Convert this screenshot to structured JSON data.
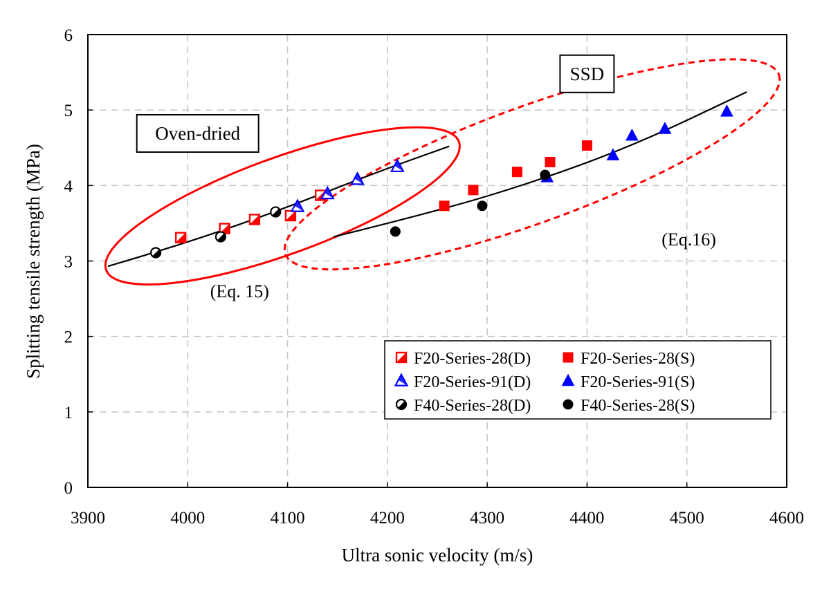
{
  "chart_data": {
    "type": "scatter",
    "xlabel": "Ultra sonic velocity (m/s)",
    "ylabel": "Splitting tensile strength (MPa)",
    "xlim": [
      3900,
      4600
    ],
    "ylim": [
      0,
      6
    ],
    "x_ticks": [
      3900,
      4000,
      4100,
      4200,
      4300,
      4400,
      4500,
      4600
    ],
    "y_ticks": [
      0,
      1,
      2,
      3,
      4,
      5,
      6
    ],
    "grid": true,
    "legend_position": "lower-right",
    "colors": {
      "red": "#ff0000",
      "blue": "#0000ff",
      "black": "#000000"
    },
    "series": [
      {
        "name": "F20-Series-28(D)",
        "marker": "square",
        "color": "#ff0000",
        "fill": "half",
        "points": [
          [
            3993,
            3.31
          ],
          [
            4037,
            3.43
          ],
          [
            4067,
            3.55
          ],
          [
            4103,
            3.6
          ],
          [
            4133,
            3.87
          ]
        ]
      },
      {
        "name": "F20-Series-28(S)",
        "marker": "square",
        "color": "#ff0000",
        "fill": "filled",
        "points": [
          [
            4257,
            3.73
          ],
          [
            4286,
            3.94
          ],
          [
            4330,
            4.18
          ],
          [
            4363,
            4.31
          ],
          [
            4400,
            4.53
          ]
        ]
      },
      {
        "name": "F20-Series-91(D)",
        "marker": "triangle",
        "color": "#0000ff",
        "fill": "half",
        "points": [
          [
            4110,
            3.72
          ],
          [
            4140,
            3.89
          ],
          [
            4170,
            4.08
          ],
          [
            4210,
            4.25
          ]
        ]
      },
      {
        "name": "F20-Series-91(S)",
        "marker": "triangle",
        "color": "#0000ff",
        "fill": "filled",
        "points": [
          [
            4360,
            4.11
          ],
          [
            4426,
            4.4
          ],
          [
            4445,
            4.66
          ],
          [
            4478,
            4.75
          ],
          [
            4540,
            4.98
          ]
        ]
      },
      {
        "name": "F40-Series-28(D)",
        "marker": "circle",
        "color": "#000000",
        "fill": "half",
        "points": [
          [
            3968,
            3.11
          ],
          [
            4033,
            3.32
          ],
          [
            4088,
            3.65
          ]
        ]
      },
      {
        "name": "F40-Series-28(S)",
        "marker": "circle",
        "color": "#000000",
        "fill": "filled",
        "points": [
          [
            4208,
            3.39
          ],
          [
            4295,
            3.73
          ],
          [
            4358,
            4.14
          ]
        ]
      }
    ],
    "fit_lines": [
      {
        "name": "Oven-dried fit",
        "points": [
          [
            3920,
            2.93
          ],
          [
            3990,
            3.2
          ],
          [
            4090,
            3.66
          ],
          [
            4190,
            4.18
          ],
          [
            4262,
            4.52
          ]
        ]
      },
      {
        "name": "SSD fit",
        "points": [
          [
            4146,
            3.32
          ],
          [
            4250,
            3.66
          ],
          [
            4350,
            4.06
          ],
          [
            4450,
            4.55
          ],
          [
            4560,
            5.24
          ]
        ]
      }
    ],
    "boxes": [
      {
        "label": "Oven-dried",
        "x_center": 4010,
        "y_center": 4.69
      },
      {
        "label": "SSD",
        "x_center": 4400,
        "y_center": 5.48
      }
    ],
    "annotations": [
      {
        "text": "(Eq. 15)",
        "x": 4052,
        "y": 2.6
      },
      {
        "text": "(Eq.16)",
        "x": 4502,
        "y": 3.29
      }
    ],
    "ellipses": [
      {
        "name": "oven-dried-ellipse",
        "color": "#ff0000",
        "style": "solid",
        "cx": 4095,
        "cy": 3.73,
        "rx_data": 188,
        "ry_data": 0.64,
        "rotate_deg": -20
      },
      {
        "name": "ssd-ellipse",
        "color": "#ff0000",
        "style": "dashed",
        "cx": 4345,
        "cy": 4.28,
        "rx_data": 263,
        "ry_data": 0.77,
        "rotate_deg": -20
      }
    ]
  }
}
